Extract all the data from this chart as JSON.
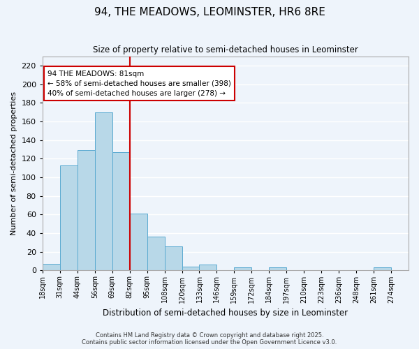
{
  "title": "94, THE MEADOWS, LEOMINSTER, HR6 8RE",
  "subtitle": "Size of property relative to semi-detached houses in Leominster",
  "xlabel": "Distribution of semi-detached houses by size in Leominster",
  "ylabel": "Number of semi-detached properties",
  "bin_labels": [
    "18sqm",
    "31sqm",
    "44sqm",
    "56sqm",
    "69sqm",
    "82sqm",
    "95sqm",
    "108sqm",
    "120sqm",
    "133sqm",
    "146sqm",
    "159sqm",
    "172sqm",
    "184sqm",
    "197sqm",
    "210sqm",
    "223sqm",
    "236sqm",
    "248sqm",
    "261sqm",
    "274sqm"
  ],
  "bar_heights": [
    7,
    113,
    129,
    170,
    127,
    61,
    36,
    26,
    4,
    6,
    0,
    3,
    0,
    3,
    0,
    0,
    0,
    0,
    0,
    3,
    0
  ],
  "bar_color": "#b8d8e8",
  "bar_edge_color": "#5aaad0",
  "vline_x": 5,
  "vline_color": "#cc0000",
  "ylim": [
    0,
    230
  ],
  "yticks": [
    0,
    20,
    40,
    60,
    80,
    100,
    120,
    140,
    160,
    180,
    200,
    220
  ],
  "annotation_title": "94 THE MEADOWS: 81sqm",
  "annotation_line1": "← 58% of semi-detached houses are smaller (398)",
  "annotation_line2": "40% of semi-detached houses are larger (278) →",
  "annotation_box_color": "#ffffff",
  "annotation_box_edge": "#cc0000",
  "footer1": "Contains HM Land Registry data © Crown copyright and database right 2025.",
  "footer2": "Contains public sector information licensed under the Open Government Licence v3.0.",
  "background_color": "#eef4fb",
  "grid_color": "#ffffff"
}
